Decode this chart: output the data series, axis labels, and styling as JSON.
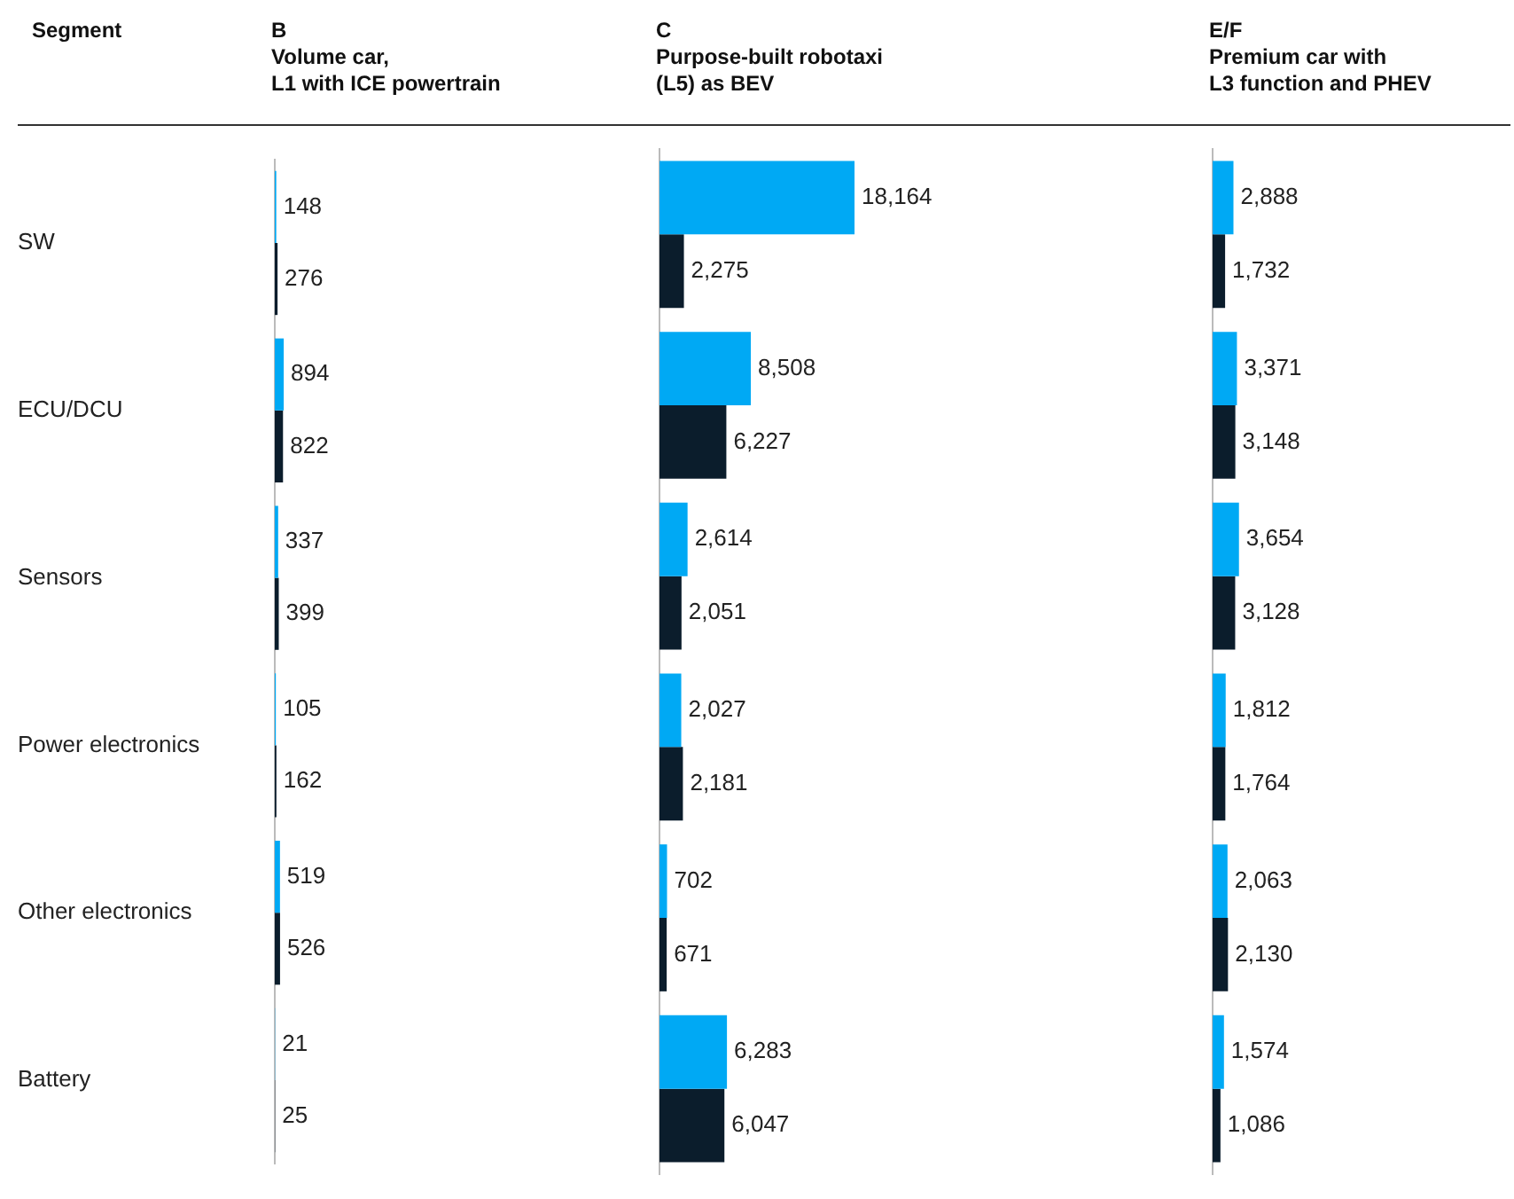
{
  "chart_data": [
    {
      "type": "bar",
      "orientation": "horizontal",
      "ylabel": "Segment",
      "title": "B",
      "subtitle": "Volume car,\nL1 with ICE powertrain",
      "categories": [
        "SW",
        "ECU/DCU",
        "Sensors",
        "Power electronics",
        "Other electronics",
        "Battery"
      ],
      "tick_labels": "y",
      "series": [
        {
          "color": "#00a9f4",
          "values": [
            148,
            894,
            337,
            105,
            519,
            21
          ],
          "value_labels": [
            "148",
            "894",
            "337",
            "105",
            "519",
            "21"
          ]
        },
        {
          "color": "#0b1d2c",
          "values": [
            276,
            822,
            399,
            162,
            526,
            25
          ],
          "value_labels": [
            "276",
            "822",
            "399",
            "162",
            "526",
            "25"
          ]
        }
      ]
    },
    {
      "type": "bar",
      "orientation": "horizontal",
      "title": "C",
      "subtitle": "Purpose-built robotaxi\n(L5) as BEV",
      "categories": [
        null,
        null,
        null,
        null,
        null,
        null
      ],
      "series": [
        {
          "color": "#00a9f4",
          "values": [
            18164,
            8508,
            2614,
            2027,
            702,
            6283
          ],
          "value_labels": [
            "18,164",
            "8,508",
            "2,614",
            "2,027",
            "702",
            "6,283"
          ]
        },
        {
          "color": "#0b1d2c",
          "values": [
            2275,
            6227,
            2051,
            2181,
            671,
            6047
          ],
          "value_labels": [
            "2,275",
            "6,227",
            "2,051",
            "2,181",
            "671",
            "6,047"
          ]
        }
      ]
    },
    {
      "type": "bar",
      "orientation": "horizontal",
      "title": "E/F",
      "subtitle": "Premium car with\nL3 function and PHEV",
      "categories": [
        null,
        null,
        null,
        null,
        null,
        null
      ],
      "series": [
        {
          "color": "#00a9f4",
          "values": [
            2888,
            3371,
            3654,
            1812,
            2063,
            1574
          ],
          "value_labels": [
            "2,888",
            "3,371",
            "3,654",
            "1,812",
            "2,063",
            "1,574"
          ]
        },
        {
          "color": "#0b1d2c",
          "values": [
            1732,
            3148,
            3128,
            1764,
            2130,
            1086
          ],
          "value_labels": [
            "1,732",
            "3,148",
            "3,128",
            "1,764",
            "2,130",
            "1,086"
          ]
        }
      ]
    }
  ]
}
